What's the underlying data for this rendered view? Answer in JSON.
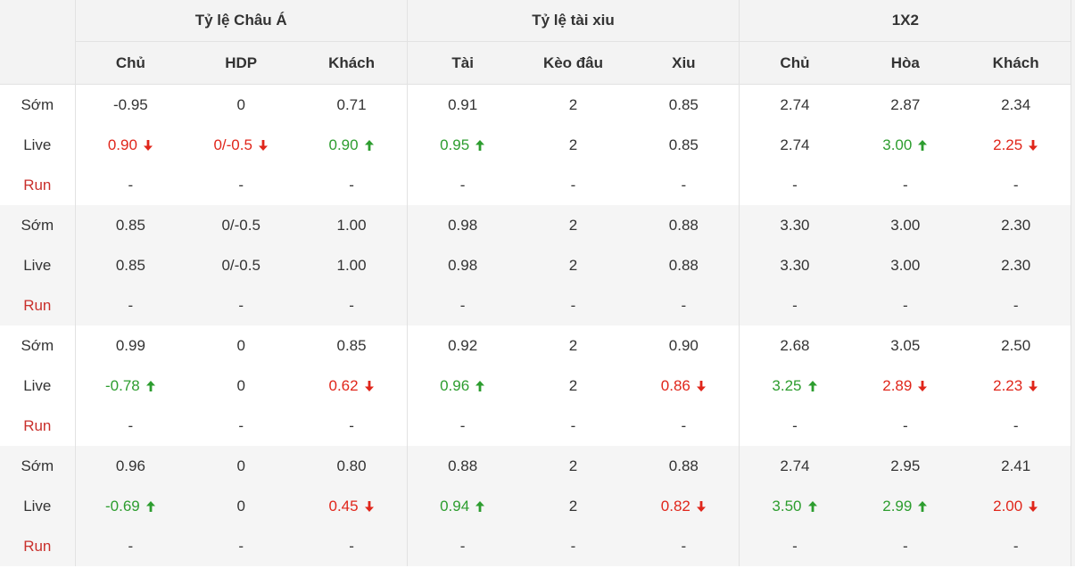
{
  "header": {
    "groups": [
      "Tỷ lệ Châu Á",
      "Tỷ lệ tài xiu",
      "1X2"
    ],
    "columns": [
      "Chủ",
      "HDP",
      "Khách",
      "Tài",
      "Kèo đâu",
      "Xiu",
      "Chủ",
      "Hòa",
      "Khách"
    ]
  },
  "colors": {
    "up": "#2d9d2f",
    "down": "#e0261b",
    "run_label": "#c9302c"
  },
  "matches": [
    {
      "rows": [
        {
          "label": "Sớm",
          "cells": [
            {
              "v": "-0.95"
            },
            {
              "v": "0"
            },
            {
              "v": "0.71"
            },
            {
              "v": "0.91"
            },
            {
              "v": "2"
            },
            {
              "v": "0.85"
            },
            {
              "v": "2.74"
            },
            {
              "v": "2.87"
            },
            {
              "v": "2.34"
            }
          ]
        },
        {
          "label": "Live",
          "cells": [
            {
              "v": "0.90",
              "dir": "down"
            },
            {
              "v": "0/-0.5",
              "dir": "down"
            },
            {
              "v": "0.90",
              "dir": "up"
            },
            {
              "v": "0.95",
              "dir": "up"
            },
            {
              "v": "2"
            },
            {
              "v": "0.85"
            },
            {
              "v": "2.74"
            },
            {
              "v": "3.00",
              "dir": "up"
            },
            {
              "v": "2.25",
              "dir": "down"
            }
          ]
        },
        {
          "label": "Run",
          "cells": [
            {
              "v": "-"
            },
            {
              "v": "-"
            },
            {
              "v": "-"
            },
            {
              "v": "-"
            },
            {
              "v": "-"
            },
            {
              "v": "-"
            },
            {
              "v": "-"
            },
            {
              "v": "-"
            },
            {
              "v": "-"
            }
          ]
        }
      ]
    },
    {
      "rows": [
        {
          "label": "Sớm",
          "cells": [
            {
              "v": "0.85"
            },
            {
              "v": "0/-0.5"
            },
            {
              "v": "1.00"
            },
            {
              "v": "0.98"
            },
            {
              "v": "2"
            },
            {
              "v": "0.88"
            },
            {
              "v": "3.30"
            },
            {
              "v": "3.00"
            },
            {
              "v": "2.30"
            }
          ]
        },
        {
          "label": "Live",
          "cells": [
            {
              "v": "0.85"
            },
            {
              "v": "0/-0.5"
            },
            {
              "v": "1.00"
            },
            {
              "v": "0.98"
            },
            {
              "v": "2"
            },
            {
              "v": "0.88"
            },
            {
              "v": "3.30"
            },
            {
              "v": "3.00"
            },
            {
              "v": "2.30"
            }
          ]
        },
        {
          "label": "Run",
          "cells": [
            {
              "v": "-"
            },
            {
              "v": "-"
            },
            {
              "v": "-"
            },
            {
              "v": "-"
            },
            {
              "v": "-"
            },
            {
              "v": "-"
            },
            {
              "v": "-"
            },
            {
              "v": "-"
            },
            {
              "v": "-"
            }
          ]
        }
      ]
    },
    {
      "rows": [
        {
          "label": "Sớm",
          "cells": [
            {
              "v": "0.99"
            },
            {
              "v": "0"
            },
            {
              "v": "0.85"
            },
            {
              "v": "0.92"
            },
            {
              "v": "2"
            },
            {
              "v": "0.90"
            },
            {
              "v": "2.68"
            },
            {
              "v": "3.05"
            },
            {
              "v": "2.50"
            }
          ]
        },
        {
          "label": "Live",
          "cells": [
            {
              "v": "-0.78",
              "dir": "up"
            },
            {
              "v": "0"
            },
            {
              "v": "0.62",
              "dir": "down"
            },
            {
              "v": "0.96",
              "dir": "up"
            },
            {
              "v": "2"
            },
            {
              "v": "0.86",
              "dir": "down"
            },
            {
              "v": "3.25",
              "dir": "up"
            },
            {
              "v": "2.89",
              "dir": "down"
            },
            {
              "v": "2.23",
              "dir": "down"
            }
          ]
        },
        {
          "label": "Run",
          "cells": [
            {
              "v": "-"
            },
            {
              "v": "-"
            },
            {
              "v": "-"
            },
            {
              "v": "-"
            },
            {
              "v": "-"
            },
            {
              "v": "-"
            },
            {
              "v": "-"
            },
            {
              "v": "-"
            },
            {
              "v": "-"
            }
          ]
        }
      ]
    },
    {
      "rows": [
        {
          "label": "Sớm",
          "cells": [
            {
              "v": "0.96"
            },
            {
              "v": "0"
            },
            {
              "v": "0.80"
            },
            {
              "v": "0.88"
            },
            {
              "v": "2"
            },
            {
              "v": "0.88"
            },
            {
              "v": "2.74"
            },
            {
              "v": "2.95"
            },
            {
              "v": "2.41"
            }
          ]
        },
        {
          "label": "Live",
          "cells": [
            {
              "v": "-0.69",
              "dir": "up"
            },
            {
              "v": "0"
            },
            {
              "v": "0.45",
              "dir": "down"
            },
            {
              "v": "0.94",
              "dir": "up"
            },
            {
              "v": "2"
            },
            {
              "v": "0.82",
              "dir": "down"
            },
            {
              "v": "3.50",
              "dir": "up"
            },
            {
              "v": "2.99",
              "dir": "up"
            },
            {
              "v": "2.00",
              "dir": "down"
            }
          ]
        },
        {
          "label": "Run",
          "cells": [
            {
              "v": "-"
            },
            {
              "v": "-"
            },
            {
              "v": "-"
            },
            {
              "v": "-"
            },
            {
              "v": "-"
            },
            {
              "v": "-"
            },
            {
              "v": "-"
            },
            {
              "v": "-"
            },
            {
              "v": "-"
            }
          ]
        }
      ]
    }
  ]
}
